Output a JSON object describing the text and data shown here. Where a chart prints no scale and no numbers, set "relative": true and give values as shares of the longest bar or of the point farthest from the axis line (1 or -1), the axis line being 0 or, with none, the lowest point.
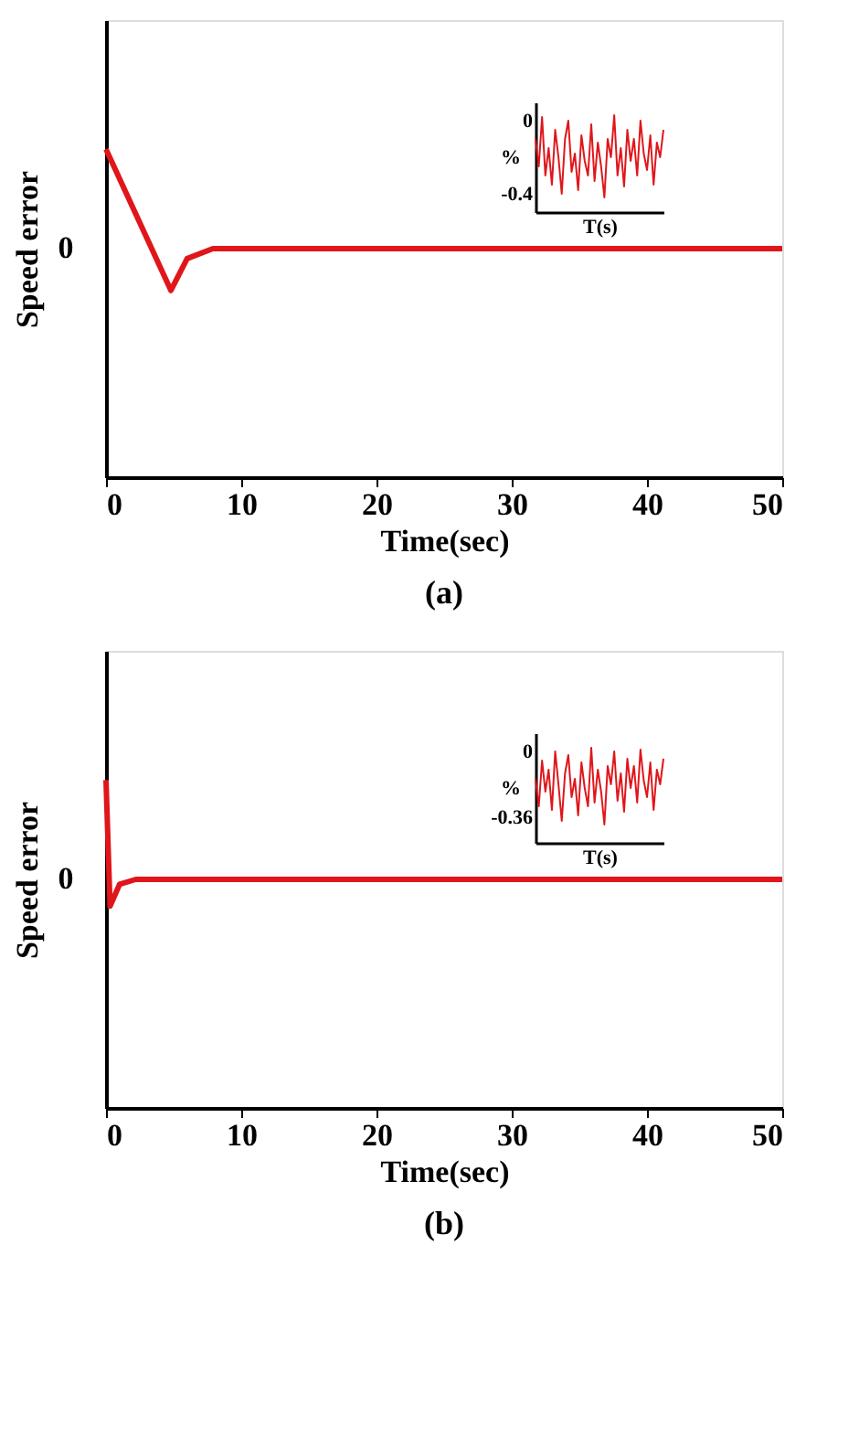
{
  "chart_data": [
    {
      "type": "line",
      "title": "(a)",
      "xlabel": "Time(sec)",
      "ylabel": "Speed error",
      "relative": true,
      "x": [
        0,
        4.8,
        6,
        7.9,
        50
      ],
      "xlim": [
        0,
        50
      ],
      "xticks": [
        0,
        10,
        20,
        30,
        40,
        50
      ],
      "annotations": [
        "0"
      ],
      "grid": false,
      "series": [
        {
          "color": "#e0161b",
          "values": [
            1,
            -0.42,
            -0.1,
            0,
            0
          ]
        }
      ]
    },
    {
      "type": "line",
      "xlabel": "T(s)",
      "ylabel": "%",
      "categories": [
        null,
        null,
        null,
        null,
        null,
        null,
        null,
        null,
        null,
        null,
        null,
        null,
        null,
        null,
        null,
        null,
        null,
        null,
        null,
        null,
        null,
        null,
        null,
        null,
        null,
        null,
        null,
        null,
        null,
        null,
        null,
        null,
        null,
        null,
        null,
        null,
        null,
        null,
        null,
        null
      ],
      "ylim": [
        -0.5,
        0.1
      ],
      "yticks": [
        0,
        -0.4
      ],
      "tick_labels": "y",
      "grid": false,
      "series": [
        {
          "color": "#e0161b",
          "values": [
            -0.1,
            -0.25,
            0.02,
            -0.3,
            -0.15,
            -0.35,
            -0.05,
            -0.2,
            -0.4,
            -0.1,
            0.0,
            -0.28,
            -0.18,
            -0.38,
            -0.08,
            -0.22,
            -0.3,
            -0.02,
            -0.33,
            -0.12,
            -0.25,
            -0.42,
            -0.1,
            -0.2,
            0.03,
            -0.3,
            -0.15,
            -0.36,
            -0.05,
            -0.22,
            -0.1,
            -0.3,
            0.0,
            -0.18,
            -0.27,
            -0.08,
            -0.35,
            -0.12,
            -0.2,
            -0.05
          ]
        }
      ]
    },
    {
      "type": "line",
      "title": "(b)",
      "xlabel": "Time(sec)",
      "ylabel": "Speed error",
      "relative": true,
      "x": [
        0,
        0.3,
        1,
        2.2,
        50
      ],
      "xlim": [
        0,
        50
      ],
      "xticks": [
        0,
        10,
        20,
        30,
        40,
        50
      ],
      "annotations": [
        "0"
      ],
      "grid": false,
      "series": [
        {
          "color": "#e0161b",
          "values": [
            1,
            -0.27,
            -0.05,
            0,
            0
          ]
        }
      ]
    },
    {
      "type": "line",
      "xlabel": "T(s)",
      "ylabel": "%",
      "categories": [
        null,
        null,
        null,
        null,
        null,
        null,
        null,
        null,
        null,
        null,
        null,
        null,
        null,
        null,
        null,
        null,
        null,
        null,
        null,
        null,
        null,
        null,
        null,
        null,
        null,
        null,
        null,
        null,
        null,
        null,
        null,
        null,
        null,
        null,
        null,
        null,
        null,
        null,
        null,
        null
      ],
      "ylim": [
        -0.5,
        0.1
      ],
      "yticks": [
        0,
        -0.36
      ],
      "tick_labels": "y",
      "grid": false,
      "series": [
        {
          "color": "#e0161b",
          "values": [
            -0.15,
            -0.3,
            -0.05,
            -0.22,
            -0.1,
            -0.32,
            0.0,
            -0.18,
            -0.38,
            -0.12,
            -0.02,
            -0.25,
            -0.15,
            -0.35,
            -0.06,
            -0.2,
            -0.3,
            0.02,
            -0.28,
            -0.1,
            -0.22,
            -0.4,
            -0.08,
            -0.18,
            0.0,
            -0.27,
            -0.12,
            -0.33,
            -0.04,
            -0.2,
            -0.08,
            -0.28,
            0.01,
            -0.16,
            -0.25,
            -0.06,
            -0.32,
            -0.1,
            -0.18,
            -0.04
          ]
        }
      ]
    }
  ]
}
